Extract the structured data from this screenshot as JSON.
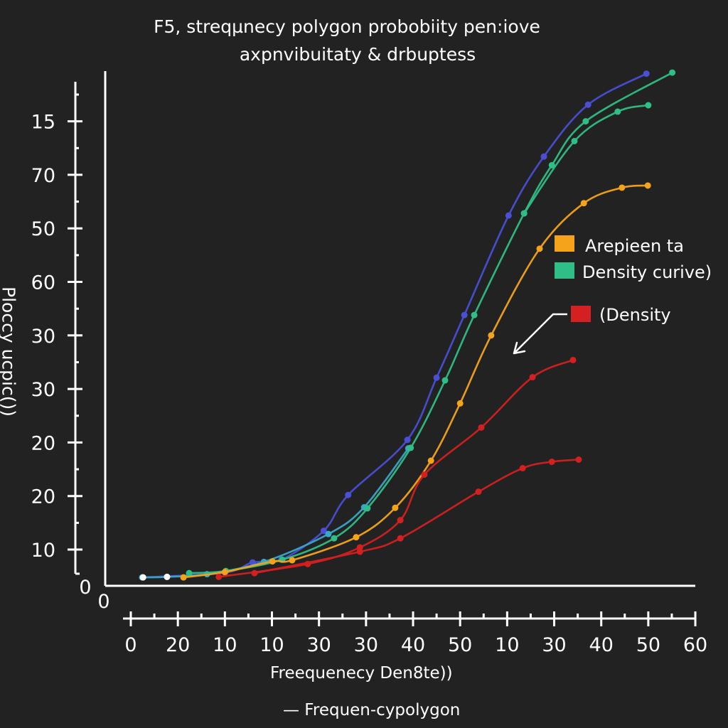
{
  "chart_data": {
    "type": "line",
    "title": "F5, streqµnecy polygon probobiity pen:iove",
    "subtitle": "axpnvibuitaty & drbuptess",
    "xlabel": "Freequenecy Den8te))",
    "ylabel": "Ploccy ucpic())",
    "footer": "— Frequen-cypolygon",
    "grid": false,
    "x_axis": {
      "origin_label": "0",
      "tick_labels": [
        "0",
        "20",
        "10",
        "10",
        "30",
        "30",
        "40",
        "50",
        "10",
        "30",
        "40",
        "50",
        "60"
      ],
      "range_tick_index": [
        0,
        12
      ]
    },
    "y_axis": {
      "origin_label": "0",
      "tick_labels": [
        "10",
        "20",
        "20",
        "30",
        "30",
        "60",
        "50",
        "70",
        "15"
      ],
      "range_tick_index": [
        0,
        9.4
      ]
    },
    "value_units": "positions expressed in tick-index units (x: 0 = first x tick label '0', 12 = last '60'; y: 1 = first y tick label '10', 9 = top label '15')",
    "legend": {
      "placement": "right",
      "entries": [
        {
          "label": "Arepieen ta",
          "color": "#f5a31a"
        },
        {
          "label": "Density curive)",
          "color": "#2fbf86"
        },
        {
          "label": "(Density",
          "color": "#d42020",
          "has_arrow": true
        }
      ]
    },
    "series": [
      {
        "name": "blue",
        "color": "#4a4fd6",
        "points": [
          [
            0.26,
            0.48
          ],
          [
            2.0,
            0.57
          ],
          [
            2.59,
            0.76
          ],
          [
            3.2,
            0.81
          ],
          [
            4.1,
            1.35
          ],
          [
            4.62,
            2.02
          ],
          [
            5.88,
            3.05
          ],
          [
            6.5,
            4.21
          ],
          [
            7.09,
            5.38
          ],
          [
            8.03,
            7.24
          ],
          [
            8.78,
            8.34
          ],
          [
            9.72,
            9.31
          ],
          [
            10.96,
            9.89
          ]
        ]
      },
      {
        "name": "cyan",
        "color": "#3aa6c8",
        "points": [
          [
            0.24,
            0.48
          ],
          [
            0.77,
            0.49
          ],
          [
            1.62,
            0.54
          ],
          [
            2.83,
            0.77
          ],
          [
            4.2,
            1.29
          ],
          [
            4.96,
            1.79
          ],
          [
            5.9,
            2.89
          ]
        ]
      },
      {
        "name": "green-upper",
        "color": "#2fbf86",
        "points": [
          [
            1.24,
            0.56
          ],
          [
            2.02,
            0.6
          ],
          [
            3.22,
            0.81
          ],
          [
            4.32,
            1.21
          ],
          [
            5.03,
            1.77
          ],
          [
            5.95,
            2.9
          ],
          [
            6.68,
            4.16
          ],
          [
            7.3,
            5.38
          ],
          [
            8.36,
            7.28
          ],
          [
            8.95,
            8.18
          ],
          [
            9.67,
            9.0
          ],
          [
            11.51,
            9.91
          ]
        ]
      },
      {
        "name": "green-lower",
        "color": "#2fbf86",
        "points": [
          [
            8.36,
            7.28
          ],
          [
            9.43,
            8.63
          ],
          [
            10.35,
            9.18
          ],
          [
            11.0,
            9.3
          ]
        ]
      },
      {
        "name": "orange",
        "color": "#f5a31a",
        "points": [
          [
            1.12,
            0.48
          ],
          [
            2.0,
            0.58
          ],
          [
            3.01,
            0.78
          ],
          [
            3.43,
            0.8
          ],
          [
            4.79,
            1.23
          ],
          [
            5.62,
            1.78
          ],
          [
            6.38,
            2.66
          ],
          [
            7.0,
            3.73
          ],
          [
            7.66,
            5.0
          ],
          [
            8.69,
            6.62
          ],
          [
            9.63,
            7.47
          ],
          [
            10.44,
            7.76
          ],
          [
            10.99,
            7.8
          ]
        ]
      },
      {
        "name": "red-upper",
        "color": "#d42020",
        "points": [
          [
            1.87,
            0.49
          ],
          [
            3.76,
            0.73
          ],
          [
            4.87,
            1.04
          ],
          [
            5.73,
            1.55
          ],
          [
            6.24,
            2.4
          ],
          [
            7.45,
            3.28
          ],
          [
            8.54,
            4.22
          ],
          [
            9.4,
            4.54
          ]
        ]
      },
      {
        "name": "red-lower",
        "color": "#d42020",
        "points": [
          [
            2.63,
            0.56
          ],
          [
            4.87,
            0.96
          ],
          [
            5.73,
            1.21
          ],
          [
            7.39,
            2.08
          ],
          [
            8.33,
            2.52
          ],
          [
            8.95,
            2.64
          ],
          [
            9.52,
            2.68
          ]
        ]
      },
      {
        "name": "white-start-markers",
        "color": "#ffffff",
        "points": [
          [
            0.26,
            0.48
          ],
          [
            0.77,
            0.49
          ]
        ],
        "markers_only": true
      }
    ]
  }
}
